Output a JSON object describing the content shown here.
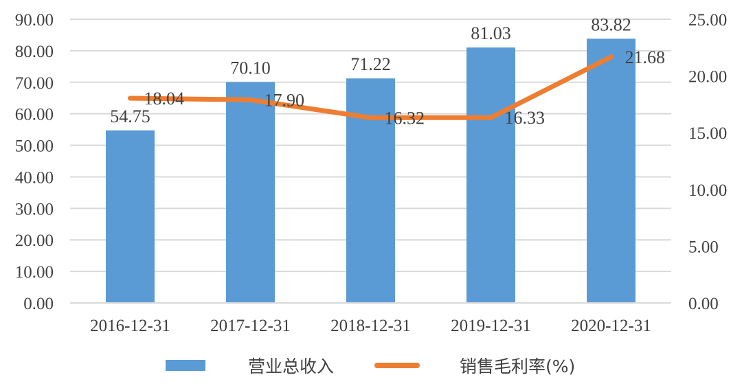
{
  "chart_data": {
    "type": "bar+line",
    "title": "",
    "categories": [
      "2016-12-31",
      "2017-12-31",
      "2018-12-31",
      "2019-12-31",
      "2020-12-31"
    ],
    "series": [
      {
        "name": "营业总收入",
        "type": "bar",
        "axis": "left",
        "color": "#5b9bd5",
        "values": [
          54.75,
          70.1,
          71.22,
          81.03,
          83.82
        ],
        "labels": [
          "54.75",
          "70.10",
          "71.22",
          "81.03",
          "83.82"
        ]
      },
      {
        "name": "销售毛利率(%)",
        "type": "line",
        "axis": "right",
        "color": "#ed7d31",
        "values": [
          18.04,
          17.9,
          16.32,
          16.33,
          21.68
        ],
        "labels": [
          "18.04",
          "17.90",
          "16.32",
          "16.33",
          "21.68"
        ]
      }
    ],
    "y_left": {
      "range": [
        0,
        90
      ],
      "step": 10,
      "ticks": [
        "0.00",
        "10.00",
        "20.00",
        "30.00",
        "40.00",
        "50.00",
        "60.00",
        "70.00",
        "80.00",
        "90.00"
      ]
    },
    "y_right": {
      "range": [
        0,
        25
      ],
      "step": 5,
      "ticks": [
        "0.00",
        "5.00",
        "10.00",
        "15.00",
        "20.00",
        "25.00"
      ]
    },
    "xlabel": "",
    "ylabel": "",
    "grid": true,
    "legend_position": "bottom"
  },
  "legend": {
    "bar_label": "营业总收入",
    "line_label": "销售毛利率(%)"
  }
}
